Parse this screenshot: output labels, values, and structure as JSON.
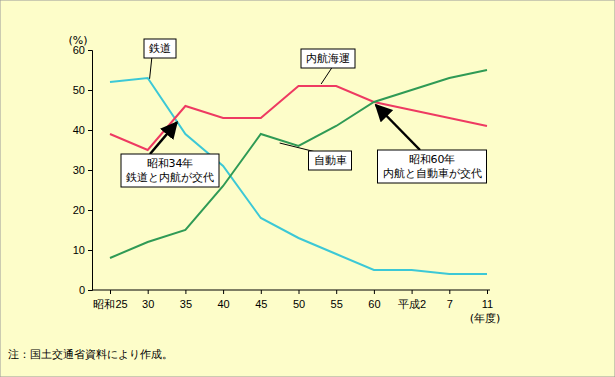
{
  "chart_data": {
    "type": "line",
    "y_label": "(%)",
    "x_label": "(年度)",
    "categories": [
      "昭和25",
      "30",
      "35",
      "40",
      "45",
      "50",
      "55",
      "60",
      "平成2",
      "7",
      "11"
    ],
    "series": [
      {
        "name": "鉄道",
        "color": "#3cc8d6",
        "values": [
          52,
          53,
          39,
          31,
          18,
          13,
          9,
          5,
          5,
          4,
          4
        ]
      },
      {
        "name": "内航海運",
        "color": "#ee3a62",
        "values": [
          39,
          35,
          46,
          43,
          43,
          51,
          51,
          47,
          45,
          43,
          41
        ]
      },
      {
        "name": "自動車",
        "color": "#2f9a55",
        "values": [
          8,
          12,
          15,
          26,
          39,
          36,
          41,
          47,
          50,
          53,
          55
        ]
      }
    ],
    "ylim": [
      0,
      60
    ],
    "yticks": [
      0,
      10,
      20,
      30,
      40,
      50,
      60
    ],
    "grid": false,
    "annotations": [
      {
        "text": "昭和34年\n鉄道と内航が交代"
      },
      {
        "text": "昭和60年\n内航と自動車が交代"
      }
    ],
    "note": "注：国土交通省資料により作成。"
  }
}
